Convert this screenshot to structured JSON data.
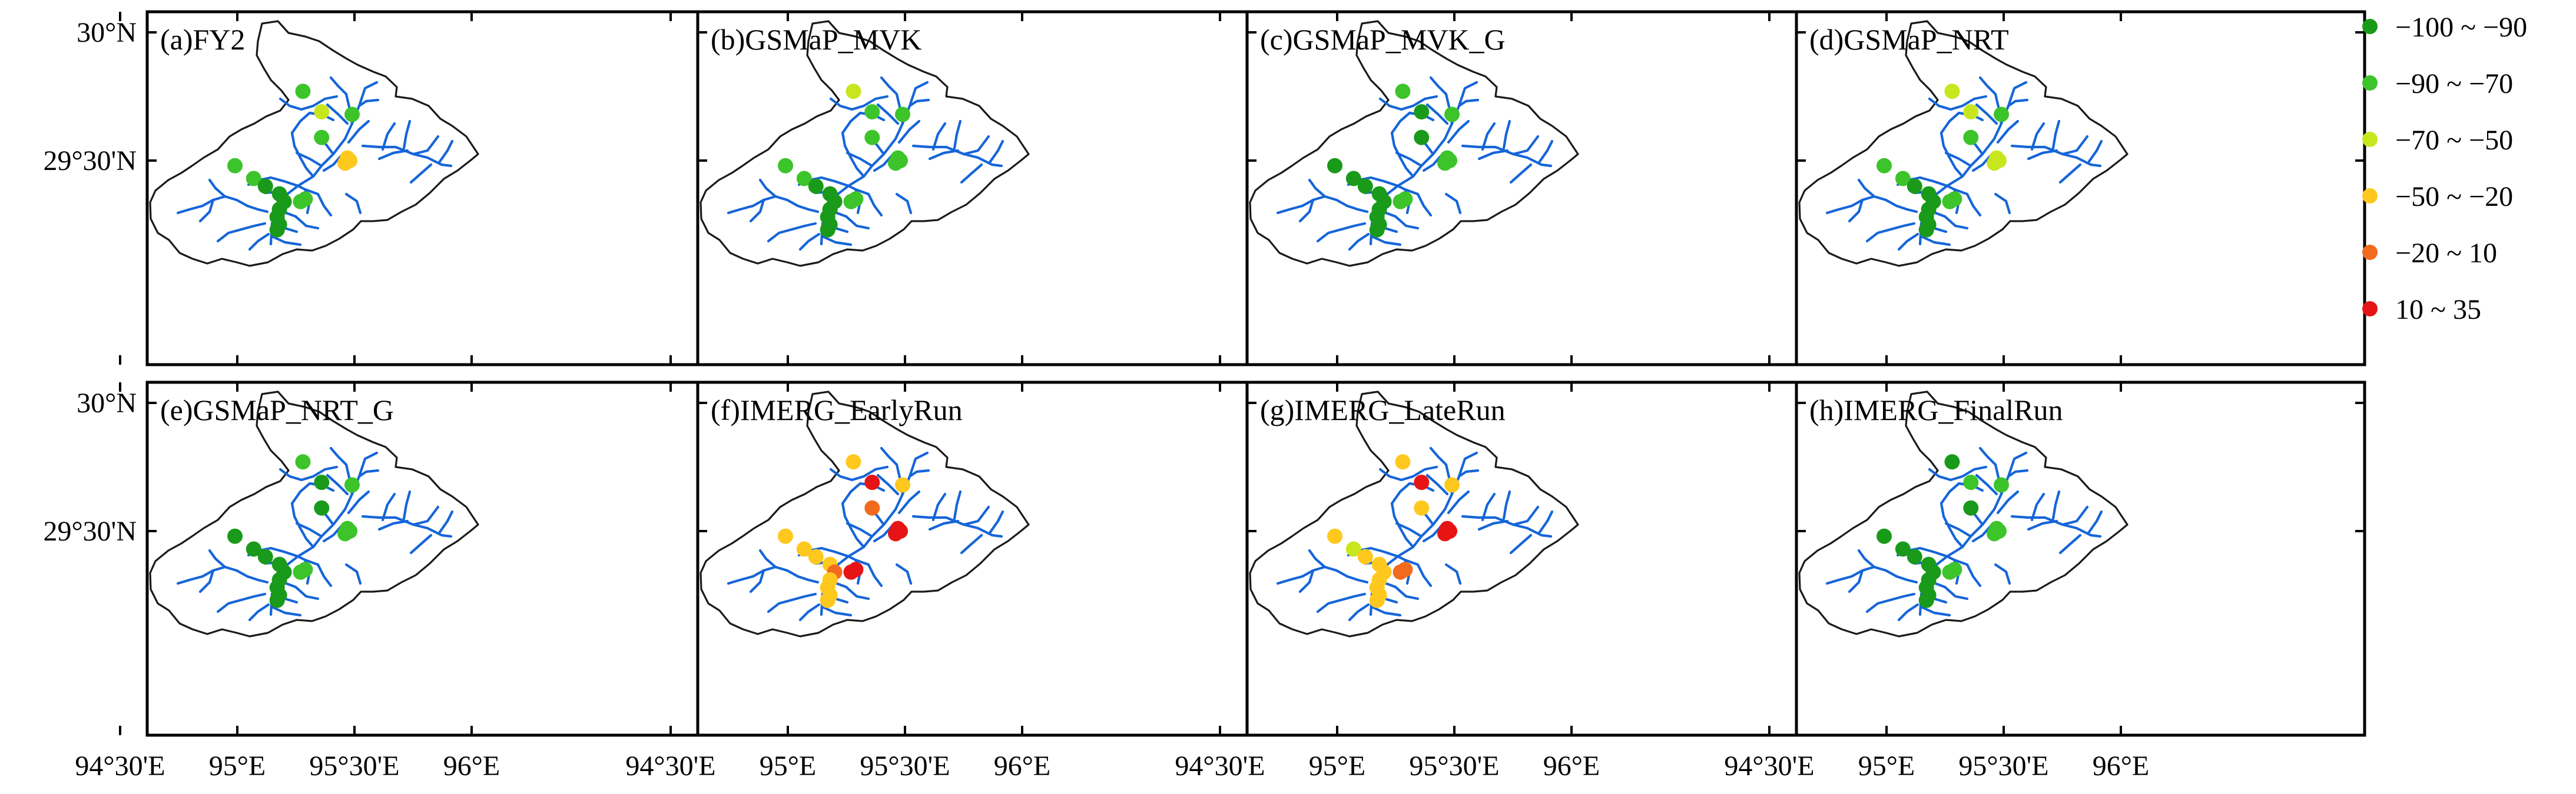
{
  "panels": [
    {
      "title": "(a)FY2"
    },
    {
      "title": "(b)GSMaP_MVK"
    },
    {
      "title": "(c)GSMaP_MVK_G"
    },
    {
      "title": "(d)GSMaP_NRT"
    },
    {
      "title": "(e)GSMaP_NRT_G"
    },
    {
      "title": "(f)IMERG_EarlyRun"
    },
    {
      "title": "(g)IMERG_LateRun"
    },
    {
      "title": "(h)IMERG_FinalRun"
    }
  ],
  "axes": {
    "x_ticks": [
      "94°30'E",
      "95°E",
      "95°30'E",
      "96°E"
    ],
    "y_ticks": [
      "30°N",
      "29°30'N"
    ]
  },
  "legend": {
    "items": [
      {
        "label": "−100 ~ −90",
        "color": "#1a9a1a"
      },
      {
        "label": "−90 ~ −70",
        "color": "#3cc42a"
      },
      {
        "label": "−70 ~ −50",
        "color": "#c8e61e"
      },
      {
        "label": "−50 ~ −20",
        "color": "#ffc81e"
      },
      {
        "label": "−20 ~ 10",
        "color": "#f26a1e"
      },
      {
        "label": "10 ~ 35",
        "color": "#e61414"
      }
    ]
  },
  "map_data": {
    "x_ticks_lon": [
      94.5,
      95.0,
      95.5,
      96.0
    ],
    "y_ticks_lat": [
      30.0,
      29.5
    ],
    "stations": [
      {
        "lon": 95.28,
        "lat": 29.77
      },
      {
        "lon": 95.36,
        "lat": 29.69
      },
      {
        "lon": 95.36,
        "lat": 29.59
      },
      {
        "lon": 95.49,
        "lat": 29.68
      },
      {
        "lon": 95.47,
        "lat": 29.51
      },
      {
        "lon": 95.46,
        "lat": 29.49
      },
      {
        "lon": 95.48,
        "lat": 29.5
      },
      {
        "lon": 94.99,
        "lat": 29.48
      },
      {
        "lon": 95.07,
        "lat": 29.43
      },
      {
        "lon": 95.12,
        "lat": 29.4
      },
      {
        "lon": 95.18,
        "lat": 29.37
      },
      {
        "lon": 95.2,
        "lat": 29.34
      },
      {
        "lon": 95.18,
        "lat": 29.31
      },
      {
        "lon": 95.17,
        "lat": 29.28
      },
      {
        "lon": 95.18,
        "lat": 29.25
      },
      {
        "lon": 95.17,
        "lat": 29.23
      },
      {
        "lon": 95.29,
        "lat": 29.35
      },
      {
        "lon": 95.27,
        "lat": 29.34
      }
    ],
    "classes": [
      [
        1,
        2,
        1,
        1,
        3,
        3,
        3,
        1,
        1,
        0,
        0,
        0,
        0,
        0,
        0,
        0,
        1,
        1
      ],
      [
        2,
        1,
        1,
        1,
        1,
        1,
        1,
        1,
        1,
        0,
        0,
        0,
        0,
        0,
        0,
        0,
        1,
        1
      ],
      [
        1,
        0,
        0,
        1,
        1,
        1,
        1,
        0,
        0,
        0,
        0,
        0,
        0,
        0,
        0,
        0,
        1,
        1
      ],
      [
        2,
        2,
        1,
        1,
        2,
        2,
        2,
        1,
        1,
        0,
        0,
        0,
        0,
        0,
        0,
        0,
        1,
        1
      ],
      [
        1,
        0,
        0,
        1,
        1,
        1,
        1,
        0,
        0,
        0,
        0,
        0,
        0,
        0,
        0,
        0,
        1,
        1
      ],
      [
        3,
        5,
        4,
        3,
        5,
        5,
        5,
        3,
        3,
        3,
        3,
        4,
        3,
        3,
        3,
        3,
        5,
        5
      ],
      [
        3,
        5,
        3,
        3,
        5,
        5,
        5,
        3,
        2,
        3,
        3,
        3,
        3,
        3,
        3,
        3,
        4,
        4
      ],
      [
        0,
        1,
        0,
        1,
        1,
        1,
        1,
        0,
        0,
        0,
        0,
        0,
        0,
        0,
        0,
        0,
        1,
        1
      ]
    ]
  }
}
